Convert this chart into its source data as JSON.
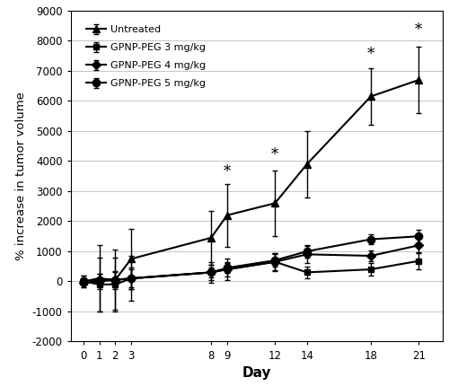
{
  "days": [
    0,
    1,
    2,
    3,
    8,
    9,
    12,
    14,
    18,
    21
  ],
  "untreated": [
    0,
    100,
    50,
    750,
    1450,
    2200,
    2600,
    3900,
    6150,
    6700
  ],
  "untreated_err_low": [
    200,
    1100,
    1000,
    1000,
    900,
    1050,
    1100,
    1100,
    950,
    1100
  ],
  "untreated_err_high": [
    200,
    1100,
    1000,
    1000,
    900,
    1050,
    1100,
    1100,
    950,
    1100
  ],
  "gpnp3": [
    0,
    -100,
    -100,
    100,
    300,
    400,
    650,
    300,
    400,
    680
  ],
  "gpnp3_err_low": [
    200,
    900,
    900,
    750,
    350,
    350,
    300,
    200,
    200,
    280
  ],
  "gpnp3_err_high": [
    200,
    900,
    900,
    750,
    350,
    350,
    300,
    200,
    200,
    280
  ],
  "gpnp4": [
    -50,
    0,
    50,
    100,
    300,
    400,
    650,
    900,
    850,
    1200
  ],
  "gpnp4_err_low": [
    100,
    250,
    300,
    350,
    250,
    250,
    280,
    280,
    180,
    260
  ],
  "gpnp4_err_high": [
    100,
    250,
    300,
    350,
    250,
    250,
    280,
    280,
    180,
    260
  ],
  "gpnp5": [
    0,
    50,
    50,
    100,
    300,
    450,
    700,
    1000,
    1400,
    1500
  ],
  "gpnp5_err_low": [
    100,
    200,
    250,
    300,
    170,
    170,
    220,
    220,
    170,
    220
  ],
  "gpnp5_err_high": [
    100,
    200,
    250,
    300,
    170,
    170,
    220,
    220,
    170,
    220
  ],
  "star_positions": [
    {
      "day": 9,
      "y": 3400
    },
    {
      "day": 12,
      "y": 3950
    },
    {
      "day": 18,
      "y": 7300
    },
    {
      "day": 21,
      "y": 8100
    }
  ],
  "ylabel": "% increase in tumor volume",
  "xlabel": "Day",
  "ylim": [
    -2000,
    9000
  ],
  "yticks": [
    -2000,
    -1000,
    0,
    1000,
    2000,
    3000,
    4000,
    5000,
    6000,
    7000,
    8000,
    9000
  ],
  "xticks": [
    0,
    1,
    2,
    3,
    8,
    9,
    12,
    14,
    18,
    21
  ],
  "legend_labels": [
    "Untreated",
    "GPNP-PEG 3 mg/kg",
    "GPNP-PEG 4 mg/kg",
    "GPNP-PEG 5 mg/kg"
  ],
  "bg_color": "#ffffff"
}
